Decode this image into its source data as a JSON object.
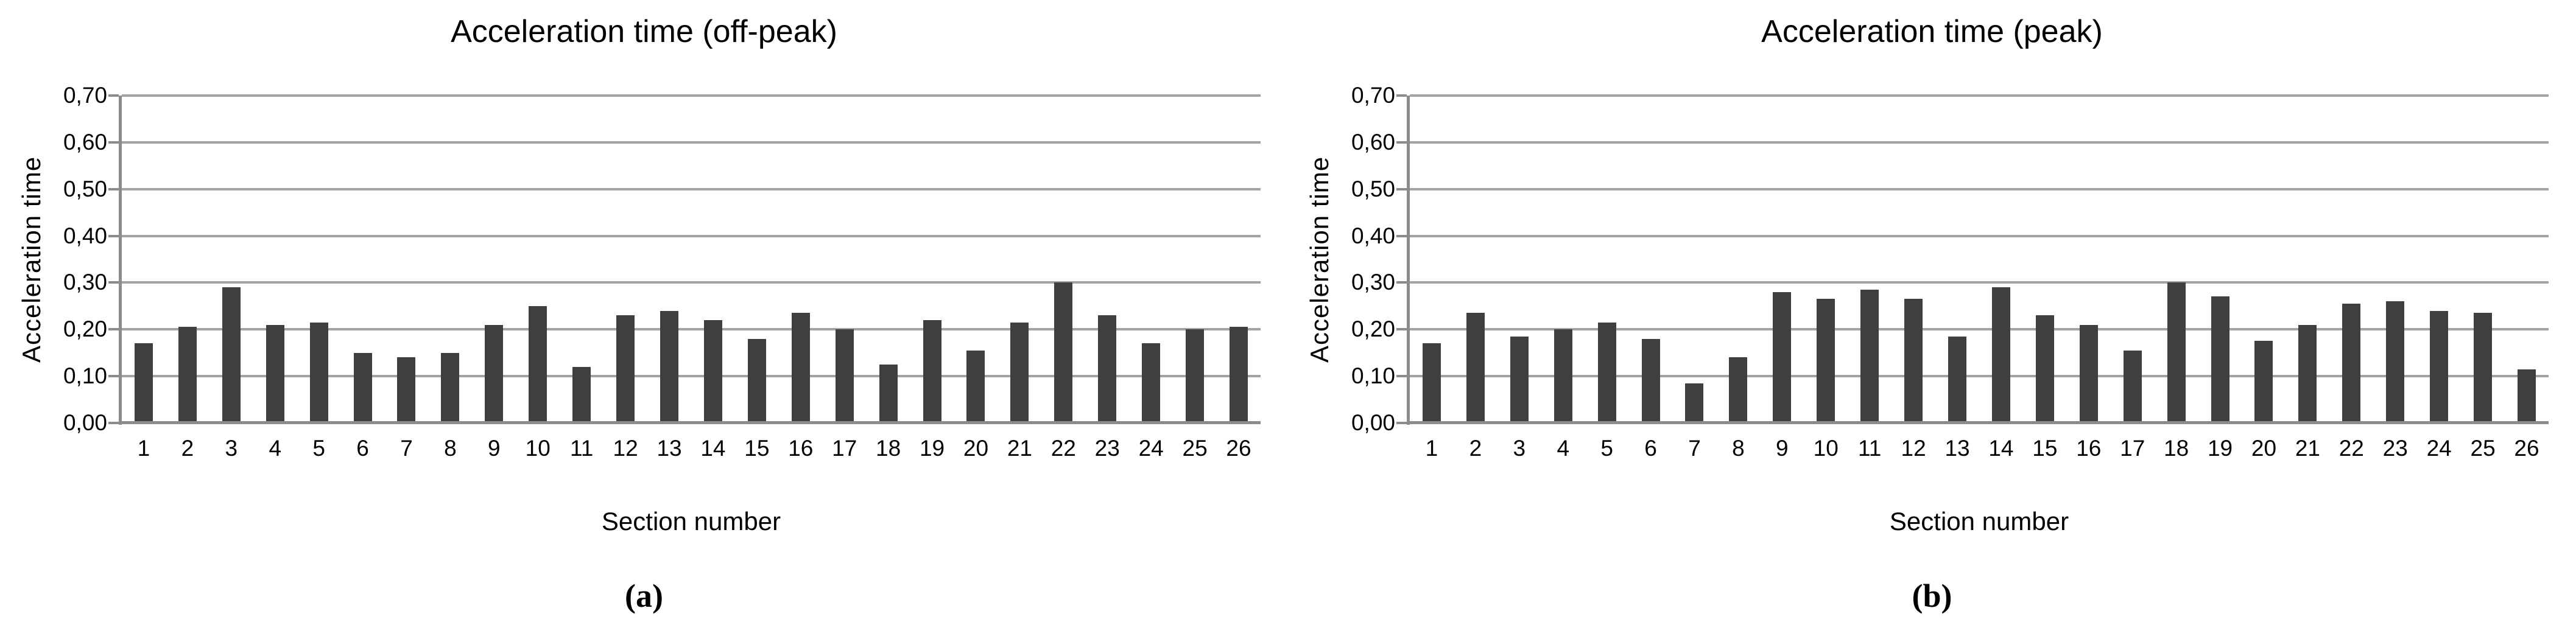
{
  "figure": {
    "description": "Two-panel bar chart figure comparing acceleration times per section",
    "captions": [
      "(a)",
      "(b)"
    ]
  },
  "colors": {
    "bar": "#3f3f3f",
    "gridline": "#a3a3a3",
    "axis": "#8c8c8c",
    "text": "#000000",
    "background": "#ffffff"
  },
  "chart_data": [
    {
      "type": "bar",
      "title": "Acceleration time (off-peak)",
      "xlabel": "Section number",
      "ylabel": "Acceleration time",
      "caption": "(a)",
      "ylim": [
        0,
        0.7
      ],
      "grid": "horizontal",
      "legend": "none",
      "y_tick_labels": [
        "0,70",
        "0,60",
        "0,50",
        "0,40",
        "0,30",
        "0,20",
        "0,10",
        "0,00"
      ],
      "categories": [
        "1",
        "2",
        "3",
        "4",
        "5",
        "6",
        "7",
        "8",
        "9",
        "10",
        "11",
        "12",
        "13",
        "14",
        "15",
        "16",
        "17",
        "18",
        "19",
        "20",
        "21",
        "22",
        "23",
        "24",
        "25",
        "26"
      ],
      "values": [
        0.17,
        0.205,
        0.29,
        0.21,
        0.215,
        0.15,
        0.14,
        0.15,
        0.21,
        0.25,
        0.12,
        0.23,
        0.24,
        0.22,
        0.18,
        0.235,
        0.2,
        0.125,
        0.22,
        0.155,
        0.215,
        0.3,
        0.23,
        0.17,
        0.2,
        0.205
      ]
    },
    {
      "type": "bar",
      "title": "Acceleration time (peak)",
      "xlabel": "Section number",
      "ylabel": "Acceleration time",
      "caption": "(b)",
      "ylim": [
        0,
        0.7
      ],
      "grid": "horizontal",
      "legend": "none",
      "y_tick_labels": [
        "0,70",
        "0,60",
        "0,50",
        "0,40",
        "0,30",
        "0,20",
        "0,10",
        "0,00"
      ],
      "categories": [
        "1",
        "2",
        "3",
        "4",
        "5",
        "6",
        "7",
        "8",
        "9",
        "10",
        "11",
        "12",
        "13",
        "14",
        "15",
        "16",
        "17",
        "18",
        "19",
        "20",
        "21",
        "22",
        "23",
        "24",
        "25",
        "26"
      ],
      "values": [
        0.17,
        0.235,
        0.185,
        0.2,
        0.215,
        0.18,
        0.085,
        0.14,
        0.28,
        0.265,
        0.285,
        0.265,
        0.185,
        0.29,
        0.23,
        0.21,
        0.155,
        0.3,
        0.27,
        0.175,
        0.21,
        0.255,
        0.26,
        0.24,
        0.235,
        0.115
      ]
    }
  ]
}
